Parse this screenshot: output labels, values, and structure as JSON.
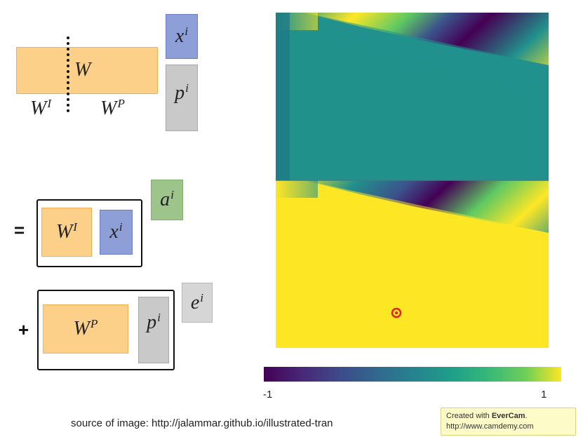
{
  "diagram": {
    "weight_label": "W",
    "w_i_base": "W",
    "w_i_sup": "I",
    "w_p_base": "W",
    "w_p_sup": "P",
    "x_base": "x",
    "x_sup": "i",
    "p_base": "p",
    "p_sup": "i",
    "a_base": "a",
    "a_sup": "i",
    "e_base": "e",
    "e_sup": "i",
    "equals": "=",
    "plus": "+"
  },
  "heatmap": {
    "colorbar_min": "-1",
    "colorbar_max": "1",
    "colormap": "viridis",
    "colors": {
      "dark": "#440154",
      "teal": "#21918c",
      "yellow": "#fde725"
    }
  },
  "source_caption": "source of image: http://jalammar.github.io/illustrated-tran",
  "watermark": {
    "line1_prefix": "Created with ",
    "line1_brand": "EverCam",
    "line1_suffix": ".",
    "line2": "http://www.camdemy.com"
  },
  "colors": {
    "orange": "#fdd08a",
    "blue": "#8e9fd8",
    "gray": "#c9c9c9",
    "green": "#9dc48b",
    "cursor": "#e0221b"
  }
}
